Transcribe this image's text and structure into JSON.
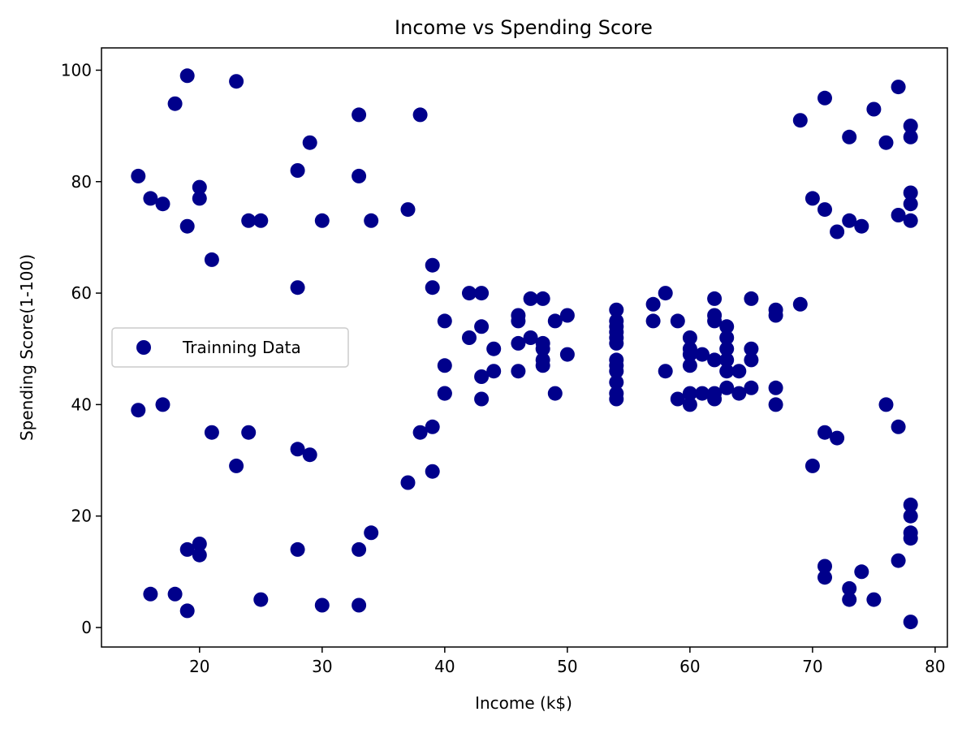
{
  "chart_data": {
    "type": "scatter",
    "title": "Income vs Spending Score",
    "xlabel": "Income (k$)",
    "ylabel": "Spending Score(1-100)",
    "xlim": [
      12,
      81
    ],
    "ylim": [
      -3.5,
      104
    ],
    "xticks": [
      20,
      30,
      40,
      50,
      60,
      70,
      80
    ],
    "yticks": [
      0,
      20,
      40,
      60,
      80,
      100
    ],
    "grid": false,
    "legend_position": "center-left",
    "series": [
      {
        "name": "Trainning Data",
        "color": "#00008b",
        "points": [
          [
            15,
            81
          ],
          [
            15,
            39
          ],
          [
            16,
            77
          ],
          [
            16,
            6
          ],
          [
            17,
            76
          ],
          [
            17,
            40
          ],
          [
            18,
            94
          ],
          [
            18,
            6
          ],
          [
            19,
            99
          ],
          [
            19,
            72
          ],
          [
            19,
            14
          ],
          [
            19,
            3
          ],
          [
            20,
            79
          ],
          [
            20,
            77
          ],
          [
            20,
            15
          ],
          [
            20,
            13
          ],
          [
            21,
            66
          ],
          [
            21,
            35
          ],
          [
            23,
            98
          ],
          [
            23,
            29
          ],
          [
            24,
            73
          ],
          [
            24,
            35
          ],
          [
            25,
            73
          ],
          [
            25,
            5
          ],
          [
            28,
            82
          ],
          [
            28,
            61
          ],
          [
            28,
            32
          ],
          [
            28,
            14
          ],
          [
            29,
            87
          ],
          [
            29,
            31
          ],
          [
            30,
            73
          ],
          [
            30,
            4
          ],
          [
            33,
            92
          ],
          [
            33,
            81
          ],
          [
            33,
            14
          ],
          [
            33,
            4
          ],
          [
            34,
            73
          ],
          [
            34,
            17
          ],
          [
            37,
            75
          ],
          [
            37,
            26
          ],
          [
            38,
            92
          ],
          [
            38,
            35
          ],
          [
            39,
            65
          ],
          [
            39,
            61
          ],
          [
            39,
            36
          ],
          [
            39,
            28
          ],
          [
            40,
            55
          ],
          [
            40,
            47
          ],
          [
            40,
            42
          ],
          [
            40,
            42
          ],
          [
            42,
            60
          ],
          [
            42,
            52
          ],
          [
            43,
            60
          ],
          [
            43,
            54
          ],
          [
            43,
            45
          ],
          [
            43,
            41
          ],
          [
            44,
            50
          ],
          [
            44,
            46
          ],
          [
            46,
            56
          ],
          [
            46,
            55
          ],
          [
            46,
            51
          ],
          [
            46,
            46
          ],
          [
            47,
            59
          ],
          [
            47,
            52
          ],
          [
            48,
            59
          ],
          [
            48,
            51
          ],
          [
            48,
            50
          ],
          [
            48,
            48
          ],
          [
            48,
            47
          ],
          [
            49,
            55
          ],
          [
            49,
            42
          ],
          [
            50,
            56
          ],
          [
            50,
            49
          ],
          [
            54,
            57
          ],
          [
            54,
            55
          ],
          [
            54,
            54
          ],
          [
            54,
            53
          ],
          [
            54,
            52
          ],
          [
            54,
            51
          ],
          [
            54,
            48
          ],
          [
            54,
            47
          ],
          [
            54,
            46
          ],
          [
            54,
            44
          ],
          [
            54,
            42
          ],
          [
            54,
            41
          ],
          [
            57,
            58
          ],
          [
            57,
            55
          ],
          [
            58,
            60
          ],
          [
            58,
            46
          ],
          [
            59,
            55
          ],
          [
            59,
            41
          ],
          [
            60,
            52
          ],
          [
            60,
            50
          ],
          [
            60,
            49
          ],
          [
            60,
            47
          ],
          [
            60,
            42
          ],
          [
            60,
            40
          ],
          [
            61,
            49
          ],
          [
            61,
            42
          ],
          [
            62,
            59
          ],
          [
            62,
            56
          ],
          [
            62,
            55
          ],
          [
            62,
            48
          ],
          [
            62,
            42
          ],
          [
            62,
            41
          ],
          [
            63,
            54
          ],
          [
            63,
            52
          ],
          [
            63,
            50
          ],
          [
            63,
            48
          ],
          [
            63,
            46
          ],
          [
            63,
            43
          ],
          [
            64,
            46
          ],
          [
            64,
            42
          ],
          [
            65,
            59
          ],
          [
            65,
            50
          ],
          [
            65,
            48
          ],
          [
            65,
            43
          ],
          [
            67,
            57
          ],
          [
            67,
            56
          ],
          [
            67,
            43
          ],
          [
            67,
            40
          ],
          [
            69,
            91
          ],
          [
            69,
            58
          ],
          [
            70,
            77
          ],
          [
            70,
            29
          ],
          [
            71,
            95
          ],
          [
            71,
            75
          ],
          [
            71,
            35
          ],
          [
            71,
            11
          ],
          [
            71,
            9
          ],
          [
            72,
            71
          ],
          [
            72,
            34
          ],
          [
            73,
            88
          ],
          [
            73,
            73
          ],
          [
            73,
            7
          ],
          [
            73,
            5
          ],
          [
            74,
            72
          ],
          [
            74,
            10
          ],
          [
            75,
            93
          ],
          [
            75,
            5
          ],
          [
            76,
            87
          ],
          [
            76,
            40
          ],
          [
            77,
            97
          ],
          [
            77,
            74
          ],
          [
            77,
            36
          ],
          [
            77,
            12
          ],
          [
            78,
            90
          ],
          [
            78,
            88
          ],
          [
            78,
            78
          ],
          [
            78,
            76
          ],
          [
            78,
            73
          ],
          [
            78,
            22
          ],
          [
            78,
            20
          ],
          [
            78,
            17
          ],
          [
            78,
            16
          ],
          [
            78,
            1
          ]
        ]
      }
    ]
  }
}
